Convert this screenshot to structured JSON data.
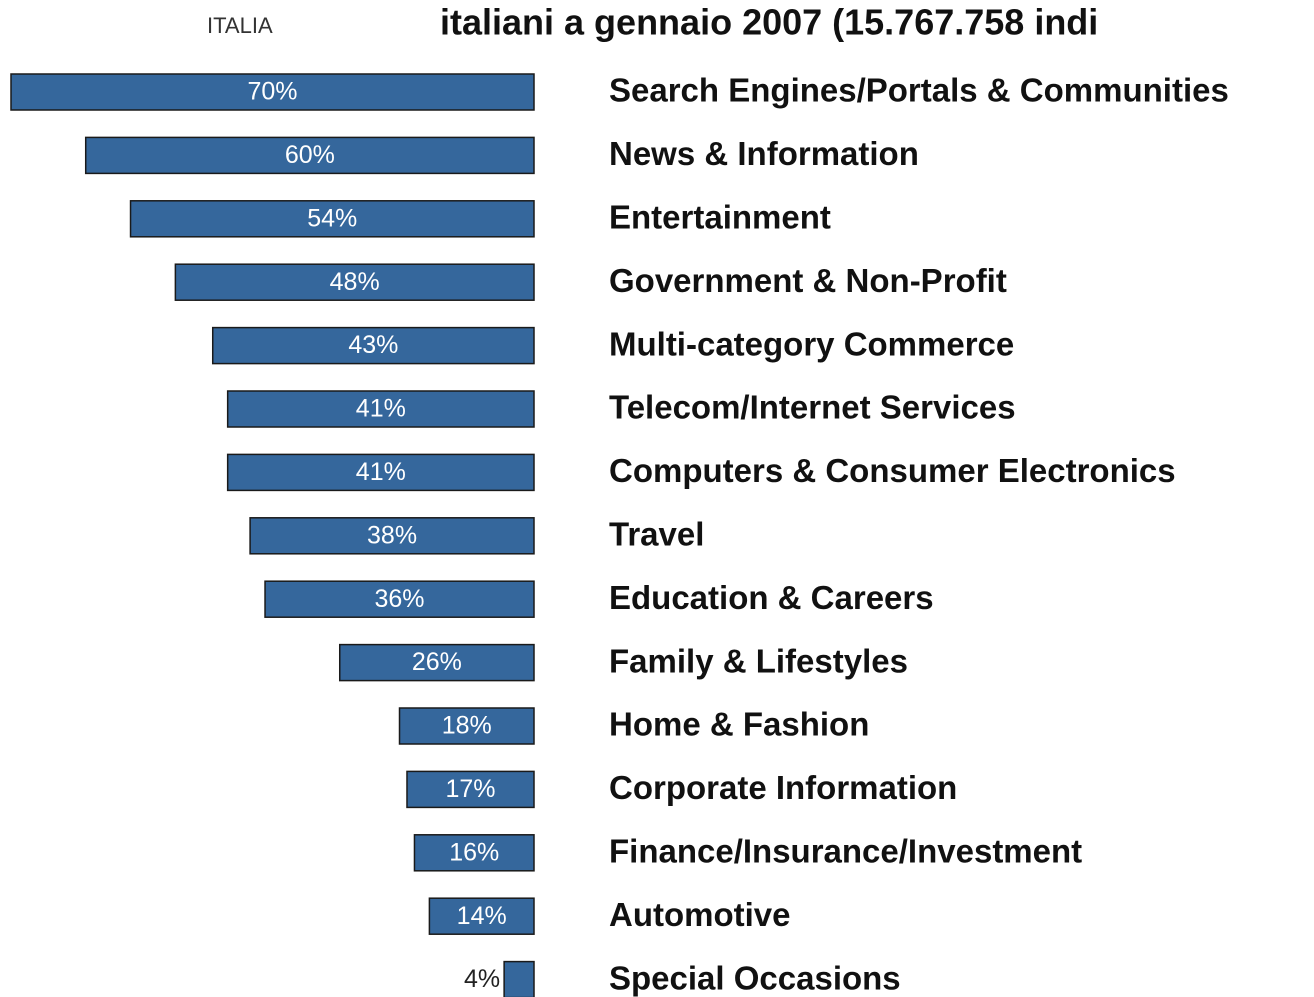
{
  "chart_data": {
    "type": "bar",
    "orientation": "horizontal",
    "title": "italiani a gennaio 2007 (15.767.758 indi",
    "subtitle": "ITALIA",
    "categories": [
      "Search Engines/Portals & Communities",
      "News & Information",
      "Entertainment",
      "Government & Non-Profit",
      "Multi-category Commerce",
      "Telecom/Internet Services",
      "Computers & Consumer Electronics",
      "Travel",
      "Education & Careers",
      "Family & Lifestyles",
      "Home & Fashion",
      "Corporate Information",
      "Finance/Insurance/Investment",
      "Automotive",
      "Special Occasions"
    ],
    "values": [
      70,
      60,
      54,
      48,
      43,
      41,
      41,
      38,
      36,
      26,
      18,
      17,
      16,
      14,
      4
    ],
    "value_labels": [
      "70%",
      "60%",
      "54%",
      "48%",
      "43%",
      "41%",
      "41%",
      "38%",
      "36%",
      "26%",
      "18%",
      "17%",
      "16%",
      "14%",
      "4%"
    ],
    "color": "#35679c"
  }
}
